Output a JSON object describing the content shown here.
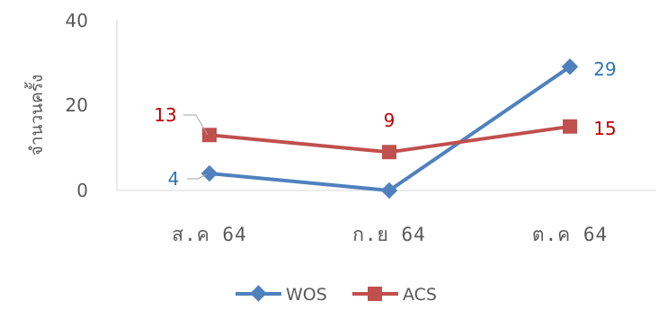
{
  "chart_data": {
    "type": "line",
    "categories": [
      "ส.ค 64",
      "ก.ย 64",
      "ต.ค 64"
    ],
    "ylabel": "จำนวนครั้ง",
    "ylim": [
      0,
      40
    ],
    "yticks": [
      "0",
      "20",
      "40"
    ],
    "grid": false,
    "legend": "bottom",
    "series": [
      {
        "name": "WOS",
        "values": [
          4,
          0,
          29
        ],
        "labels": [
          "4",
          "",
          "29"
        ],
        "color": "#4F81BD",
        "marker": "diamond"
      },
      {
        "name": "ACS",
        "values": [
          13,
          9,
          15
        ],
        "labels": [
          "13",
          "9",
          "15"
        ],
        "color": "#C0504D",
        "marker": "square"
      }
    ]
  }
}
